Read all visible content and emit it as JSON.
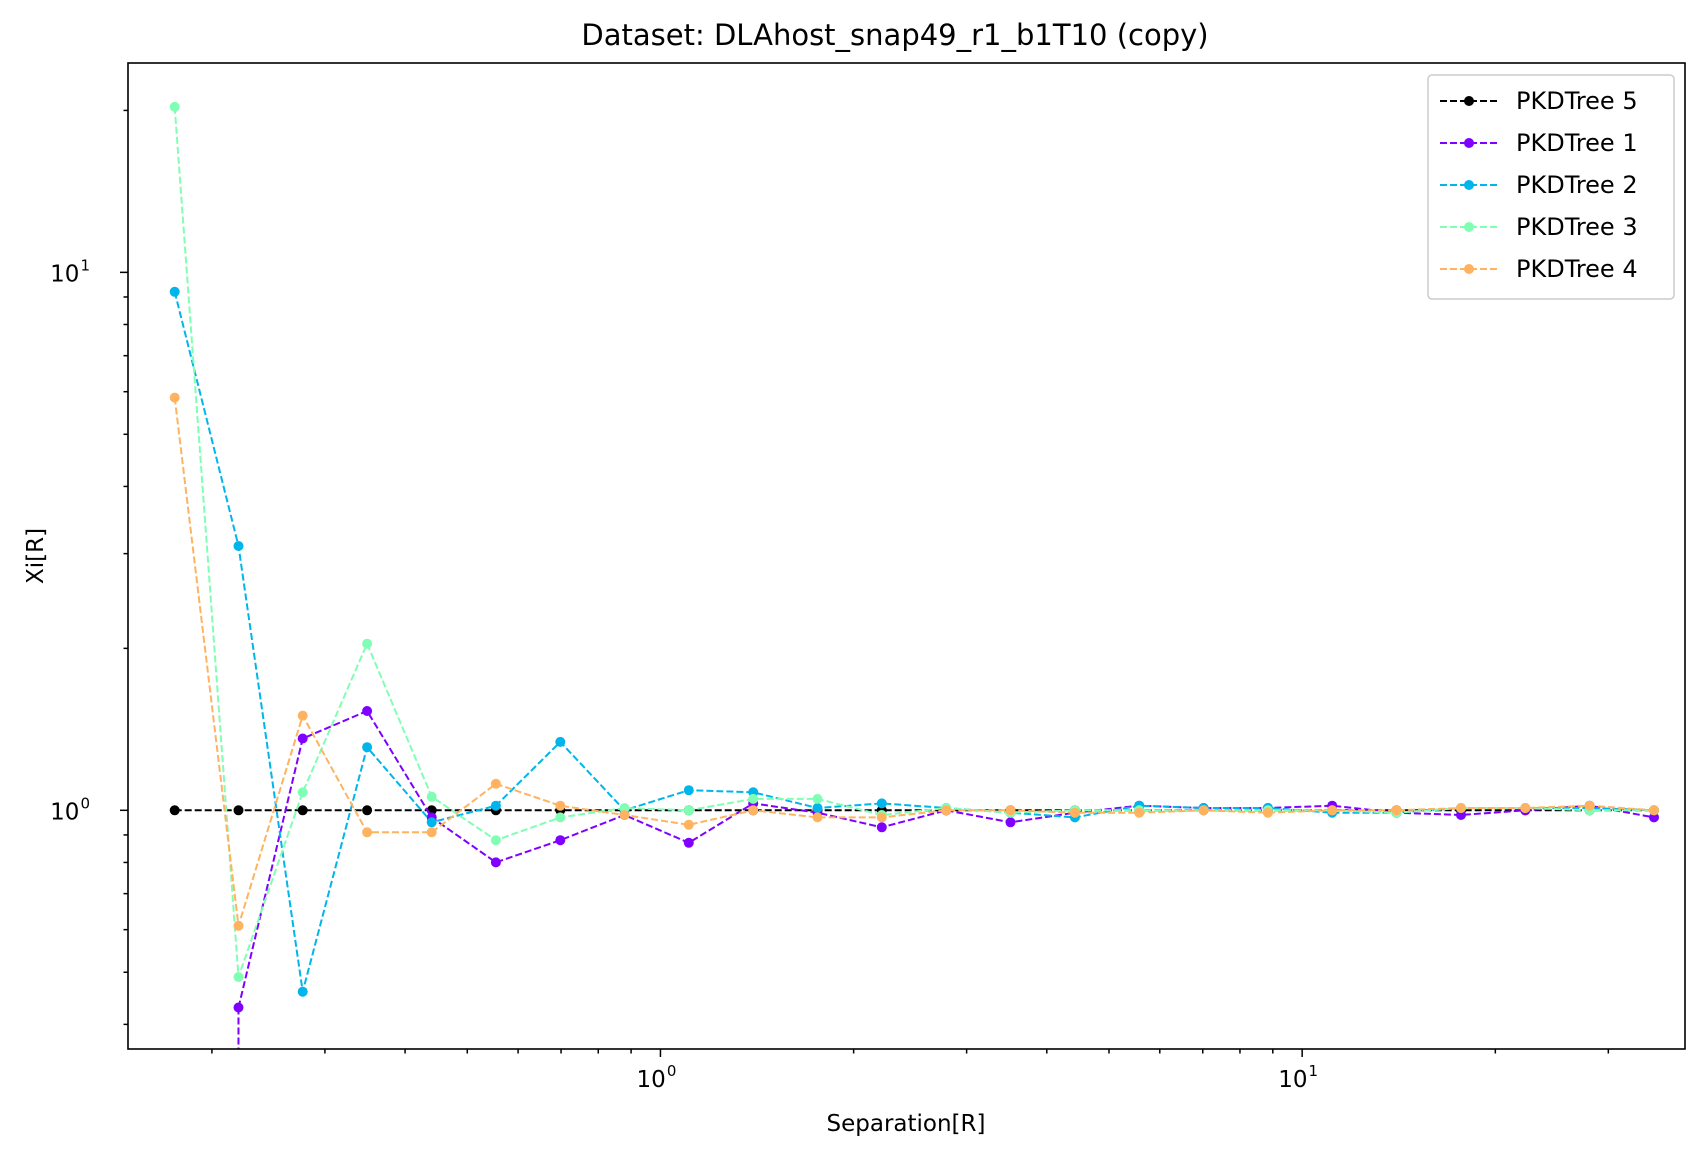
{
  "chart_data": {
    "type": "line",
    "title": "Dataset: DLAhost_snap49_r1_b1T10 (copy)",
    "xlabel": "Separation[R]",
    "ylabel": "Xi[R]",
    "xscale": "log",
    "yscale": "log",
    "xlim": [
      0.148,
      39.5
    ],
    "ylim": [
      0.36,
      24.5
    ],
    "grid": false,
    "legend_position": "top-right",
    "x_ticks": [
      {
        "value": 1,
        "base": "10",
        "exp": "0"
      },
      {
        "value": 10,
        "base": "10",
        "exp": "1"
      }
    ],
    "y_ticks": [
      {
        "value": 1,
        "base": "10",
        "exp": "0"
      },
      {
        "value": 10,
        "base": "10",
        "exp": "1"
      }
    ],
    "x": [
      0.175,
      0.22,
      0.277,
      0.349,
      0.44,
      0.554,
      0.698,
      0.879,
      1.107,
      1.395,
      1.757,
      2.213,
      2.788,
      3.512,
      4.424,
      5.573,
      7.02,
      8.843,
      11.14,
      14.03,
      17.68,
      22.27,
      28.05,
      35.34
    ],
    "series": [
      {
        "name": "PKDTree 5",
        "color": "#000000",
        "values": [
          1.0,
          1.0,
          1.0,
          1.0,
          1.0,
          1.0,
          1.0,
          1.0,
          1.0,
          1.0,
          1.0,
          1.0,
          1.0,
          1.0,
          1.0,
          1.0,
          1.0,
          1.0,
          1.0,
          1.0,
          1.0,
          1.0,
          1.0,
          1.0
        ]
      },
      {
        "name": "PKDTree 1",
        "color": "#7f00ff",
        "values": [
          null,
          0.43,
          1.36,
          1.53,
          0.97,
          0.8,
          0.88,
          0.98,
          0.87,
          1.03,
          0.99,
          0.93,
          1.0,
          0.95,
          0.99,
          1.02,
          1.01,
          1.01,
          1.02,
          0.99,
          0.98,
          1.0,
          1.02,
          0.97
        ]
      },
      {
        "name": "PKDTree 2",
        "color": "#00b5eb",
        "values": [
          9.2,
          3.1,
          0.46,
          1.31,
          0.95,
          1.02,
          1.34,
          1.0,
          1.09,
          1.08,
          1.01,
          1.03,
          1.01,
          0.99,
          0.97,
          1.02,
          1.01,
          1.01,
          0.99,
          0.99,
          1.01,
          1.01,
          1.01,
          1.0
        ]
      },
      {
        "name": "PKDTree 3",
        "color": "#80ffb4",
        "values": [
          20.3,
          0.49,
          1.08,
          2.04,
          1.06,
          0.88,
          0.97,
          1.01,
          1.0,
          1.05,
          1.05,
          0.98,
          1.01,
          0.99,
          1.0,
          1.0,
          1.0,
          1.0,
          1.0,
          0.99,
          1.01,
          1.01,
          1.0,
          1.0
        ]
      },
      {
        "name": "PKDTree 4",
        "color": "#ffb360",
        "values": [
          5.85,
          0.61,
          1.5,
          0.91,
          0.91,
          1.12,
          1.02,
          0.98,
          0.94,
          1.0,
          0.97,
          0.97,
          1.0,
          1.0,
          0.99,
          0.99,
          1.0,
          0.99,
          1.0,
          1.0,
          1.01,
          1.01,
          1.02,
          1.0
        ]
      }
    ]
  }
}
